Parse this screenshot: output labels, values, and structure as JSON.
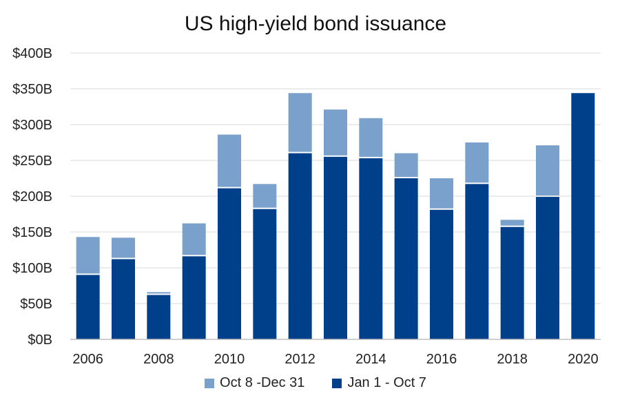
{
  "chart_data": {
    "type": "bar",
    "stacked": true,
    "title": "US high-yield bond issuance",
    "x": [
      2006,
      2007,
      2008,
      2009,
      2010,
      2011,
      2012,
      2013,
      2014,
      2015,
      2016,
      2017,
      2018,
      2019,
      2020
    ],
    "x_tick_labels": [
      "2006",
      "2008",
      "2010",
      "2012",
      "2014",
      "2016",
      "2018",
      "2020"
    ],
    "y_tick_labels": [
      "$0B",
      "$50B",
      "$100B",
      "$150B",
      "$200B",
      "$250B",
      "$300B",
      "$350B",
      "$400B"
    ],
    "ylim": [
      0,
      400
    ],
    "grid": true,
    "legend_position": "bottom",
    "series": [
      {
        "name": "Jan 1 - Oct 7",
        "color": "#00408a",
        "values": [
          90,
          112,
          62,
          116,
          211,
          182,
          260,
          255,
          253,
          225,
          181,
          217,
          157,
          199,
          344
        ]
      },
      {
        "name": "Oct 8 -Dec 31",
        "color": "#7aa1cb",
        "values": [
          53,
          30,
          4,
          46,
          75,
          35,
          84,
          66,
          56,
          35,
          44,
          58,
          10,
          72,
          0
        ]
      }
    ],
    "legend_order": [
      "Oct 8 -Dec 31",
      "Jan 1 - Oct 7"
    ]
  }
}
